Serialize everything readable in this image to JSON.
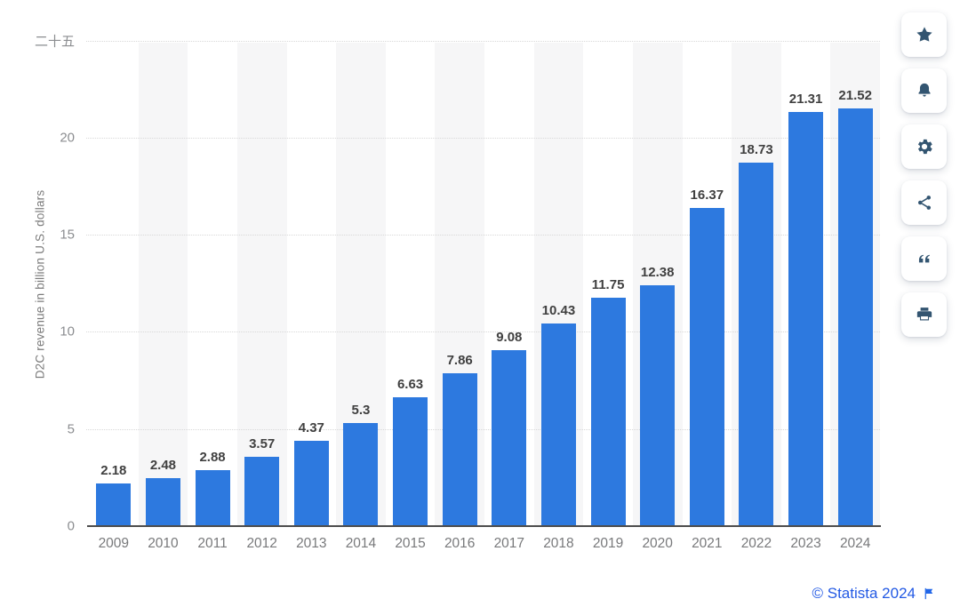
{
  "chart_data": {
    "type": "bar",
    "title": "",
    "categories": [
      "2009",
      "2010",
      "2011",
      "2012",
      "2013",
      "2014",
      "2015",
      "2016",
      "2017",
      "2018",
      "2019",
      "2020",
      "2021",
      "2022",
      "2023",
      "2024"
    ],
    "values": [
      2.18,
      2.48,
      2.88,
      3.57,
      4.37,
      5.3,
      6.63,
      7.86,
      9.08,
      10.43,
      11.75,
      12.38,
      16.37,
      18.73,
      21.31,
      21.52
    ],
    "value_labels": [
      "2.18",
      "2.48",
      "2.88",
      "3.57",
      "4.37",
      "5.3",
      "6.63",
      "7.86",
      "9.08",
      "10.43",
      "11.75",
      "12.38",
      "16.37",
      "18.73",
      "21.31",
      "21.52"
    ],
    "xlabel": "",
    "ylabel": "D2C revenue in billion U.S. dollars",
    "ylim": [
      0,
      25
    ],
    "yticks": [
      {
        "value": 0,
        "label": "0"
      },
      {
        "value": 5,
        "label": "5"
      },
      {
        "value": 10,
        "label": "10"
      },
      {
        "value": 15,
        "label": "15"
      },
      {
        "value": 20,
        "label": "20"
      },
      {
        "value": 25,
        "label": "二十五"
      }
    ],
    "grid": "horizontal-dotted",
    "legend": "none",
    "colors": {
      "bar": "#2d79df",
      "column_band": "#f6f6f7",
      "gridline": "#d8d8d8",
      "axis_line": "#4d4d4d",
      "value_label": "#404040",
      "tick_label": "#8b8d90"
    }
  },
  "toolbar": {
    "icons": [
      "star-icon",
      "bell-icon",
      "gear-icon",
      "share-icon",
      "quote-icon",
      "printer-icon"
    ],
    "icon_color": "#335571"
  },
  "footer": {
    "copyright": "© Statista 2024",
    "flag_icon": "flag-icon",
    "link_color": "#2259e4"
  }
}
